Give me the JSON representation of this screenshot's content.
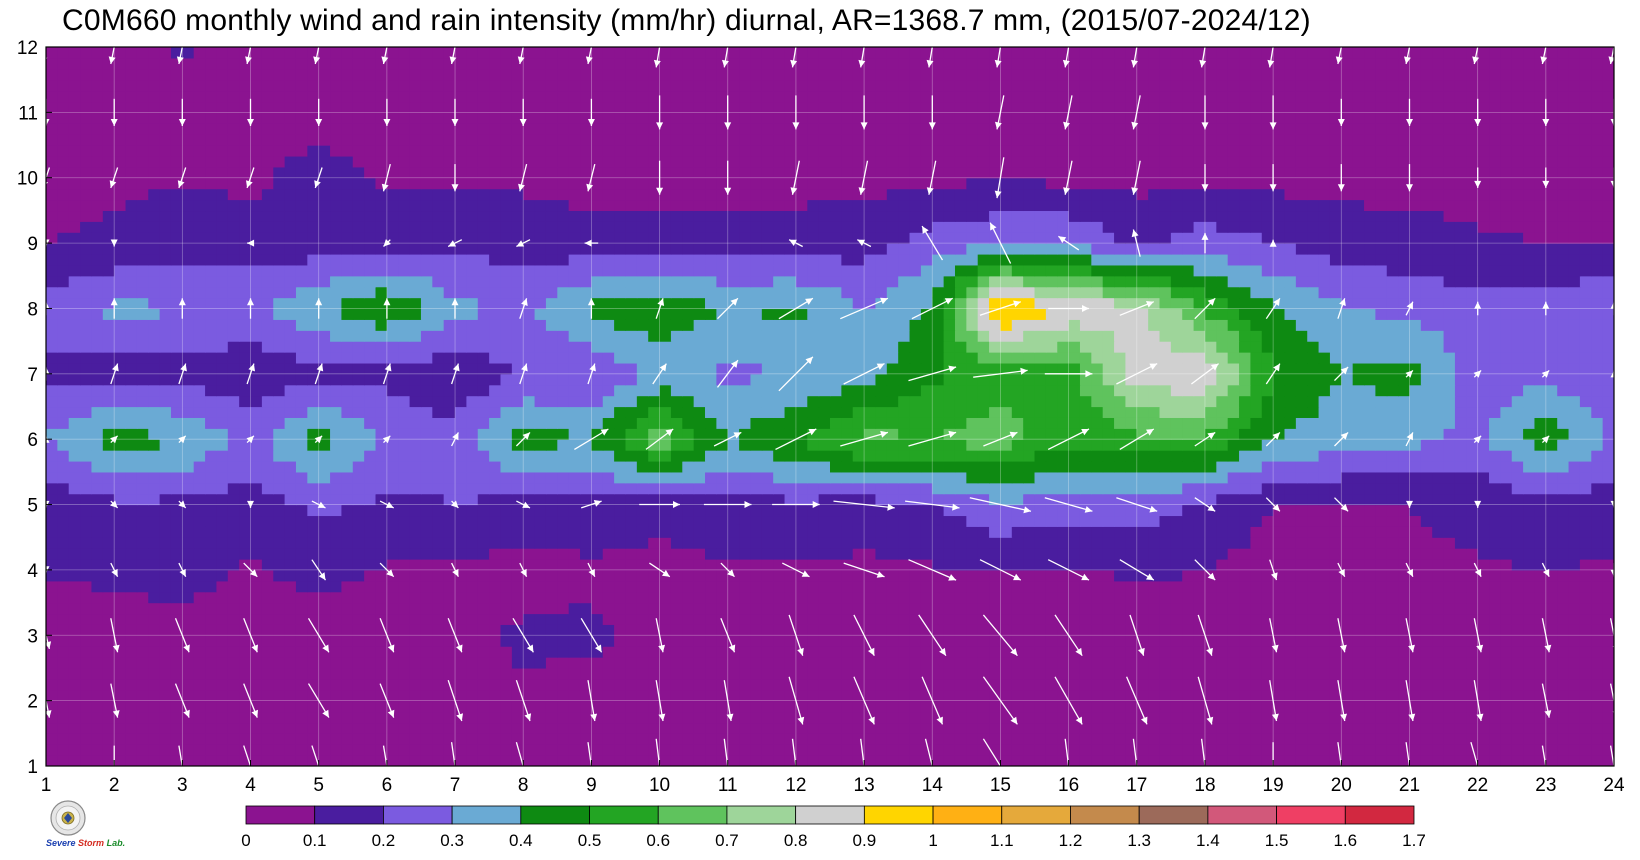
{
  "title": "C0M660 monthly wind and rain intensity (mm/hr) diurnal, AR=1368.7 mm, (2015/07-2024/12)",
  "logo": {
    "line1": "Severe",
    "line2": "Storm",
    "line3": "Lab."
  },
  "chart_data": {
    "type": "contour-heatmap with wind vectors",
    "xlabel": "",
    "ylabel": "",
    "x": [
      1,
      2,
      3,
      4,
      5,
      6,
      7,
      8,
      9,
      10,
      11,
      12,
      13,
      14,
      15,
      16,
      17,
      18,
      19,
      20,
      21,
      22,
      23,
      24
    ],
    "y": [
      1,
      2,
      3,
      4,
      5,
      6,
      7,
      8,
      9,
      10,
      11,
      12
    ],
    "xlim": [
      1,
      24
    ],
    "ylim": [
      1,
      12
    ],
    "x_tick_labels": [
      "1",
      "2",
      "3",
      "4",
      "5",
      "6",
      "7",
      "8",
      "9",
      "10",
      "11",
      "12",
      "13",
      "14",
      "15",
      "16",
      "17",
      "18",
      "19",
      "20",
      "21",
      "22",
      "23",
      "24"
    ],
    "y_tick_labels": [
      "1",
      "2",
      "3",
      "4",
      "5",
      "6",
      "7",
      "8",
      "9",
      "10",
      "11",
      "12"
    ],
    "grid": true,
    "units": "mm/hr",
    "colorbar": {
      "levels": [
        "0",
        "0.1",
        "0.2",
        "0.3",
        "0.4",
        "0.5",
        "0.6",
        "0.7",
        "0.8",
        "0.9",
        "1",
        "1.1",
        "1.2",
        "1.3",
        "1.4",
        "1.5",
        "1.6",
        "1.7"
      ],
      "colors": [
        "#8b1390",
        "#4a1d9f",
        "#7b5be0",
        "#6aaad4",
        "#0e8a12",
        "#23a523",
        "#5fc35d",
        "#9ed59a",
        "#d0d0d0",
        "#ffd500",
        "#ffb014",
        "#e5a93b",
        "#c48a4c",
        "#9c6a5a",
        "#d2587a",
        "#ef3f64",
        "#d22840"
      ]
    },
    "rain_rows_by_month": [
      [
        0.06,
        0.06,
        0.07,
        0.05,
        0.03,
        0.06,
        0.08,
        0.09,
        0.07,
        0.09,
        0.07,
        0.08,
        0.07,
        0.08,
        0.08,
        0.07,
        0.07,
        0.09,
        0.07,
        0.06,
        0.06,
        0.05,
        0.06,
        0.06
      ],
      [
        0.05,
        0.05,
        0.06,
        0.05,
        0.05,
        0.06,
        0.07,
        0.08,
        0.06,
        0.06,
        0.07,
        0.07,
        0.07,
        0.06,
        0.07,
        0.06,
        0.06,
        0.07,
        0.05,
        0.05,
        0.06,
        0.05,
        0.05,
        0.06
      ],
      [
        0.05,
        0.05,
        0.06,
        0.05,
        0.05,
        0.05,
        0.06,
        0.12,
        0.12,
        0.06,
        0.06,
        0.06,
        0.07,
        0.06,
        0.07,
        0.07,
        0.06,
        0.06,
        0.06,
        0.05,
        0.05,
        0.09,
        0.07,
        0.06
      ],
      [
        0.11,
        0.12,
        0.14,
        0.09,
        0.13,
        0.09,
        0.09,
        0.05,
        0.08,
        0.06,
        0.09,
        0.09,
        0.08,
        0.09,
        0.1,
        0.09,
        0.11,
        0.1,
        0.06,
        0.07,
        0.08,
        0.09,
        0.1,
        0.09
      ],
      [
        0.14,
        0.18,
        0.18,
        0.16,
        0.22,
        0.18,
        0.2,
        0.17,
        0.17,
        0.15,
        0.16,
        0.18,
        0.15,
        0.2,
        0.28,
        0.25,
        0.25,
        0.18,
        0.1,
        0.09,
        0.1,
        0.13,
        0.17,
        0.15
      ],
      [
        0.3,
        0.45,
        0.4,
        0.26,
        0.45,
        0.28,
        0.23,
        0.45,
        0.4,
        0.68,
        0.4,
        0.5,
        0.63,
        0.6,
        0.66,
        0.52,
        0.58,
        0.58,
        0.4,
        0.35,
        0.33,
        0.27,
        0.46,
        0.28
      ],
      [
        0.17,
        0.15,
        0.15,
        0.13,
        0.16,
        0.17,
        0.13,
        0.2,
        0.2,
        0.32,
        0.28,
        0.3,
        0.36,
        0.48,
        0.55,
        0.55,
        0.85,
        0.9,
        0.5,
        0.4,
        0.44,
        0.25,
        0.27,
        0.22
      ],
      [
        0.25,
        0.32,
        0.31,
        0.28,
        0.38,
        0.49,
        0.33,
        0.27,
        0.43,
        0.48,
        0.4,
        0.42,
        0.3,
        0.42,
        1.05,
        0.87,
        0.84,
        0.58,
        0.41,
        0.31,
        0.27,
        0.25,
        0.24,
        0.3
      ],
      [
        0.1,
        0.12,
        0.16,
        0.14,
        0.15,
        0.16,
        0.17,
        0.16,
        0.13,
        0.13,
        0.14,
        0.14,
        0.16,
        0.24,
        0.29,
        0.29,
        0.18,
        0.25,
        0.2,
        0.15,
        0.13,
        0.11,
        0.1,
        0.1
      ],
      [
        0.07,
        0.08,
        0.09,
        0.08,
        0.14,
        0.09,
        0.08,
        0.08,
        0.07,
        0.07,
        0.07,
        0.07,
        0.07,
        0.08,
        0.09,
        0.08,
        0.07,
        0.08,
        0.07,
        0.07,
        0.07,
        0.07,
        0.07,
        0.07
      ],
      [
        0.06,
        0.06,
        0.07,
        0.06,
        0.06,
        0.06,
        0.06,
        0.06,
        0.06,
        0.06,
        0.06,
        0.06,
        0.06,
        0.06,
        0.06,
        0.06,
        0.06,
        0.06,
        0.06,
        0.06,
        0.06,
        0.05,
        0.06,
        0.06
      ],
      [
        0.05,
        0.06,
        0.11,
        0.06,
        0.06,
        0.06,
        0.06,
        0.06,
        0.06,
        0.06,
        0.06,
        0.06,
        0.06,
        0.06,
        0.06,
        0.06,
        0.06,
        0.06,
        0.06,
        0.06,
        0.06,
        0.06,
        0.06,
        0.06
      ]
    ],
    "wind_u_by_month": [
      [
        0.1,
        0.0,
        0.1,
        0.2,
        0.2,
        0.1,
        0.1,
        0.2,
        0.1,
        0.1,
        0.1,
        0.1,
        0.1,
        0.2,
        0.5,
        0.1,
        0.1,
        0.1,
        0.0,
        0.1,
        0.1,
        0.2,
        0.1,
        0.1
      ],
      [
        0.1,
        0.1,
        0.2,
        0.2,
        0.3,
        0.2,
        0.2,
        0.2,
        0.1,
        0.1,
        0.1,
        0.2,
        0.3,
        0.3,
        0.5,
        0.4,
        0.3,
        0.2,
        0.1,
        0.1,
        0.1,
        0.1,
        0.1,
        0.1
      ],
      [
        0.1,
        0.1,
        0.2,
        0.2,
        0.3,
        0.2,
        0.2,
        0.3,
        0.3,
        0.1,
        0.2,
        0.2,
        0.3,
        0.4,
        0.5,
        0.4,
        0.2,
        0.2,
        0.1,
        0.1,
        0.1,
        0.1,
        0.1,
        0.1
      ],
      [
        0.0,
        0.1,
        0.1,
        0.2,
        0.2,
        0.2,
        0.1,
        0.1,
        0.1,
        0.3,
        0.2,
        0.4,
        0.6,
        0.7,
        0.6,
        0.6,
        0.5,
        0.3,
        0.1,
        0.1,
        0.1,
        0.1,
        0.1,
        0.0
      ],
      [
        0.0,
        0.1,
        0.1,
        0.0,
        0.2,
        0.2,
        0.1,
        0.2,
        0.3,
        0.6,
        0.7,
        0.7,
        0.9,
        0.8,
        0.9,
        0.7,
        0.6,
        0.3,
        0.2,
        0.2,
        0.0,
        0.0,
        0.0,
        0.0
      ],
      [
        0.0,
        0.1,
        0.1,
        0.1,
        0.1,
        0.1,
        0.1,
        0.2,
        0.5,
        0.4,
        0.4,
        0.6,
        0.7,
        0.7,
        0.5,
        0.6,
        0.5,
        0.3,
        0.2,
        0.2,
        0.1,
        0.1,
        0.1,
        0.0
      ],
      [
        0.0,
        0.1,
        0.1,
        0.1,
        0.1,
        0.1,
        0.1,
        0.1,
        0.1,
        0.2,
        0.3,
        0.5,
        0.6,
        0.7,
        0.8,
        0.7,
        0.6,
        0.4,
        0.2,
        0.2,
        0.1,
        0.1,
        0.1,
        0.0
      ],
      [
        0.0,
        0.0,
        0.0,
        0.0,
        0.0,
        0.0,
        0.0,
        0.1,
        0.0,
        0.1,
        0.3,
        0.5,
        0.7,
        0.6,
        0.6,
        0.6,
        0.5,
        0.3,
        0.2,
        0.1,
        0.1,
        0.0,
        0.0,
        0.0
      ],
      [
        0.0,
        0.0,
        0.0,
        -0.1,
        0.0,
        -0.1,
        -0.2,
        -0.2,
        -0.2,
        0.0,
        0.0,
        -0.2,
        -0.2,
        -0.3,
        -0.3,
        -0.3,
        -0.1,
        0.0,
        0.0,
        0.0,
        0.0,
        0.0,
        0.0,
        0.0
      ],
      [
        -0.1,
        -0.1,
        -0.1,
        -0.1,
        -0.1,
        -0.1,
        0.0,
        -0.1,
        -0.1,
        0.0,
        0.0,
        -0.1,
        -0.1,
        -0.1,
        -0.1,
        -0.1,
        -0.1,
        0.0,
        0.0,
        0.0,
        0.0,
        0.0,
        0.0,
        0.0
      ],
      [
        0.0,
        0.0,
        0.0,
        0.0,
        0.0,
        0.0,
        0.0,
        0.0,
        0.0,
        0.0,
        0.0,
        0.0,
        0.0,
        0.0,
        -0.1,
        -0.1,
        -0.1,
        0.0,
        0.0,
        0.0,
        0.0,
        0.0,
        0.0,
        0.0
      ],
      [
        -0.1,
        -0.1,
        -0.1,
        -0.1,
        -0.1,
        -0.1,
        -0.1,
        -0.1,
        -0.1,
        -0.1,
        -0.1,
        -0.1,
        -0.1,
        -0.1,
        -0.1,
        -0.1,
        -0.1,
        -0.1,
        -0.1,
        -0.1,
        -0.1,
        -0.1,
        -0.1,
        -0.1
      ]
    ],
    "wind_v_by_month": [
      [
        -0.6,
        -0.6,
        -0.6,
        -0.6,
        -0.6,
        -0.6,
        -0.7,
        -0.7,
        -0.7,
        -0.8,
        -0.8,
        -0.8,
        -0.8,
        -0.8,
        -0.8,
        -0.8,
        -0.8,
        -0.8,
        -0.7,
        -0.7,
        -0.7,
        -0.7,
        -0.6,
        -0.6
      ],
      [
        -0.5,
        -0.5,
        -0.5,
        -0.5,
        -0.5,
        -0.5,
        -0.6,
        -0.6,
        -0.6,
        -0.6,
        -0.6,
        -0.7,
        -0.7,
        -0.7,
        -0.7,
        -0.7,
        -0.7,
        -0.7,
        -0.6,
        -0.6,
        -0.6,
        -0.6,
        -0.5,
        -0.5
      ],
      [
        -0.4,
        -0.5,
        -0.5,
        -0.5,
        -0.5,
        -0.5,
        -0.5,
        -0.5,
        -0.5,
        -0.5,
        -0.5,
        -0.6,
        -0.6,
        -0.6,
        -0.6,
        -0.6,
        -0.6,
        -0.6,
        -0.5,
        -0.5,
        -0.5,
        -0.5,
        -0.5,
        -0.5
      ],
      [
        -0.1,
        -0.2,
        -0.2,
        -0.2,
        -0.3,
        -0.2,
        -0.2,
        -0.2,
        -0.2,
        -0.2,
        -0.2,
        -0.2,
        -0.2,
        -0.3,
        -0.3,
        -0.3,
        -0.3,
        -0.3,
        -0.3,
        -0.2,
        -0.2,
        -0.2,
        -0.2,
        -0.2
      ],
      [
        -0.1,
        -0.1,
        -0.1,
        -0.1,
        -0.1,
        -0.1,
        -0.1,
        -0.1,
        0.1,
        0.0,
        0.0,
        0.0,
        -0.1,
        -0.1,
        -0.2,
        -0.2,
        -0.2,
        -0.2,
        -0.2,
        -0.2,
        -0.1,
        -0.1,
        0.0,
        -0.1
      ],
      [
        0.1,
        0.1,
        0.1,
        0.1,
        0.1,
        0.1,
        0.2,
        0.2,
        0.3,
        0.3,
        0.2,
        0.3,
        0.2,
        0.2,
        0.2,
        0.3,
        0.3,
        0.2,
        0.2,
        0.2,
        0.2,
        0.1,
        0.1,
        0.0
      ],
      [
        0.2,
        0.3,
        0.3,
        0.3,
        0.3,
        0.3,
        0.3,
        0.3,
        0.3,
        0.3,
        0.4,
        0.5,
        0.3,
        0.2,
        0.1,
        0.0,
        0.3,
        0.3,
        0.3,
        0.2,
        0.1,
        0.1,
        0.1,
        0.1
      ],
      [
        0.2,
        0.3,
        0.3,
        0.3,
        0.3,
        0.3,
        0.3,
        0.3,
        0.3,
        0.3,
        0.3,
        0.3,
        0.3,
        0.3,
        0.2,
        0.0,
        0.2,
        0.3,
        0.3,
        0.3,
        0.2,
        0.2,
        0.2,
        0.2
      ],
      [
        -0.1,
        -0.1,
        0.0,
        0.0,
        0.0,
        -0.1,
        -0.1,
        -0.1,
        0.0,
        0.0,
        0.0,
        0.1,
        0.1,
        0.5,
        0.6,
        0.2,
        0.4,
        0.3,
        0.1,
        0.0,
        0.0,
        0.0,
        0.0,
        0.0
      ],
      [
        -0.3,
        -0.3,
        -0.3,
        -0.3,
        -0.3,
        -0.4,
        -0.4,
        -0.4,
        -0.4,
        -0.5,
        -0.5,
        -0.5,
        -0.5,
        -0.5,
        -0.6,
        -0.5,
        -0.5,
        -0.4,
        -0.4,
        -0.4,
        -0.4,
        -0.3,
        -0.3,
        -0.3
      ],
      [
        -0.4,
        -0.4,
        -0.4,
        -0.4,
        -0.4,
        -0.4,
        -0.4,
        -0.4,
        -0.4,
        -0.5,
        -0.5,
        -0.5,
        -0.5,
        -0.5,
        -0.5,
        -0.5,
        -0.5,
        -0.5,
        -0.5,
        -0.4,
        -0.4,
        -0.4,
        -0.4,
        -0.4
      ],
      [
        -0.5,
        -0.5,
        -0.5,
        -0.5,
        -0.5,
        -0.5,
        -0.5,
        -0.5,
        -0.5,
        -0.6,
        -0.6,
        -0.6,
        -0.6,
        -0.6,
        -0.6,
        -0.6,
        -0.6,
        -0.6,
        -0.6,
        -0.5,
        -0.5,
        -0.5,
        -0.5,
        -0.5
      ]
    ]
  }
}
